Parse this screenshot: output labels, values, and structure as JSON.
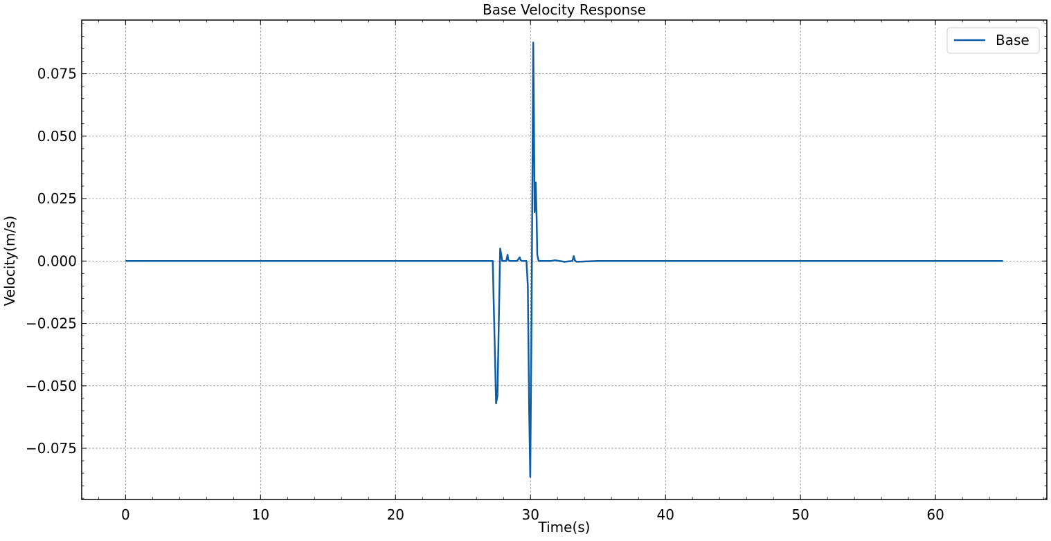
{
  "chart_data": {
    "type": "line",
    "title": "Base Velocity Response",
    "xlabel": "Time(s)",
    "ylabel": "Velocity(m/s)",
    "xlim": [
      -3.25,
      68.25
    ],
    "ylim": [
      -0.0955,
      0.0965
    ],
    "xticks": [
      0,
      10,
      20,
      30,
      40,
      50,
      60
    ],
    "xtick_labels": [
      "0",
      "10",
      "20",
      "30",
      "40",
      "50",
      "60"
    ],
    "yticks": [
      0.075,
      0.05,
      0.025,
      0.0,
      -0.025,
      -0.05,
      -0.075
    ],
    "ytick_labels": [
      "0.075",
      "0.050",
      "0.025",
      "0.000",
      "−0.025",
      "−0.050",
      "−0.075"
    ],
    "grid": true,
    "legend_position": "top-right",
    "series": [
      {
        "name": "Base",
        "color": "#0c5da5",
        "x": [
          0,
          27.0,
          27.2,
          27.45,
          27.55,
          27.7,
          27.75,
          27.85,
          27.9,
          28.2,
          28.3,
          28.35,
          28.45,
          29.0,
          29.2,
          29.25,
          29.35,
          29.7,
          29.8,
          29.9,
          29.98,
          30.08,
          30.2,
          30.25,
          30.3,
          30.38,
          30.45,
          30.5,
          30.6,
          31.0,
          31.5,
          31.8,
          32.5,
          33.1,
          33.2,
          33.28,
          33.4,
          35.0,
          40.0,
          50.0,
          65.0
        ],
        "y": [
          0.0,
          0.0,
          0.0,
          -0.057,
          -0.054,
          -0.01,
          0.005,
          0.002,
          0.0,
          0.0,
          0.0025,
          0.0005,
          0.0,
          0.0,
          0.0015,
          0.0005,
          0.0,
          0.0,
          -0.01,
          -0.06,
          -0.0865,
          -0.02,
          0.0875,
          0.06,
          0.0195,
          0.0315,
          0.018,
          0.0025,
          0.0,
          0.0,
          0.0,
          0.0003,
          -0.0003,
          0.0,
          0.002,
          0.0003,
          -0.0003,
          0.0,
          0.0,
          0.0,
          0.0
        ]
      }
    ]
  }
}
